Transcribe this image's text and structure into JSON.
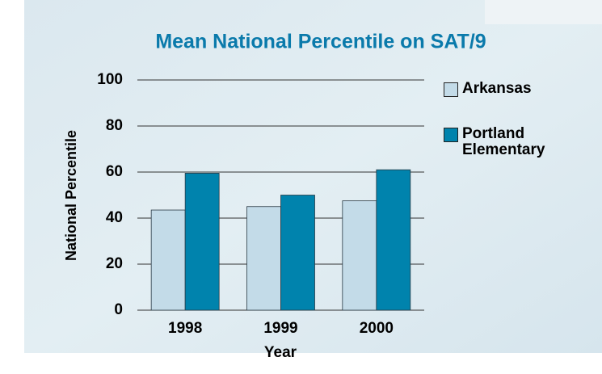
{
  "chart_data": {
    "type": "bar",
    "title": "Mean National Percentile on SAT/9",
    "x_label": "Year",
    "y_label": "National Percentile",
    "categories": [
      "1998",
      "1999",
      "2000"
    ],
    "series": [
      {
        "name": "Arkansas",
        "color": "#c3dbe8",
        "values": [
          43.5,
          45,
          47.5
        ]
      },
      {
        "name": "Portland Elementary",
        "color": "#0083ad",
        "values": [
          59.5,
          50,
          61
        ]
      }
    ],
    "ylim": [
      0,
      100
    ],
    "yticks": [
      0,
      20,
      40,
      60,
      80,
      100
    ],
    "grid": true,
    "legend": "right"
  }
}
